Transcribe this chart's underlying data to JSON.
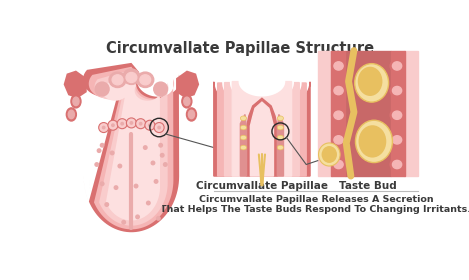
{
  "title": "Circumvallate Papillae Structure",
  "title_fontsize": 10.5,
  "title_color": "#3a3a3a",
  "label1": "Circumvallate Papillae",
  "label2": "Taste Bud",
  "caption_line1": "Circumvallate Papillae Releases A Secretion",
  "caption_line2": "That Helps The Taste Buds Respond To Changing Irritants.",
  "caption_fontsize": 6.8,
  "label_fontsize": 7.5,
  "bg_color": "#ffffff",
  "tongue_outer": "#f0a0a0",
  "tongue_main": "#f5b5b5",
  "tongue_light": "#f9cccc",
  "tongue_lighter": "#fde0e0",
  "tongue_dark": "#d97070",
  "tongue_mid": "#eaabab",
  "pap_dark": "#c86868",
  "pap_mid": "#e09090",
  "pap_light": "#f5c0c0",
  "taste_yellow": "#e8c060",
  "taste_pale": "#f5dfa0",
  "taste_dark": "#c07828",
  "circle_color": "#2a2a2a",
  "line_color": "#555555",
  "divider_color": "#bbbbbb"
}
